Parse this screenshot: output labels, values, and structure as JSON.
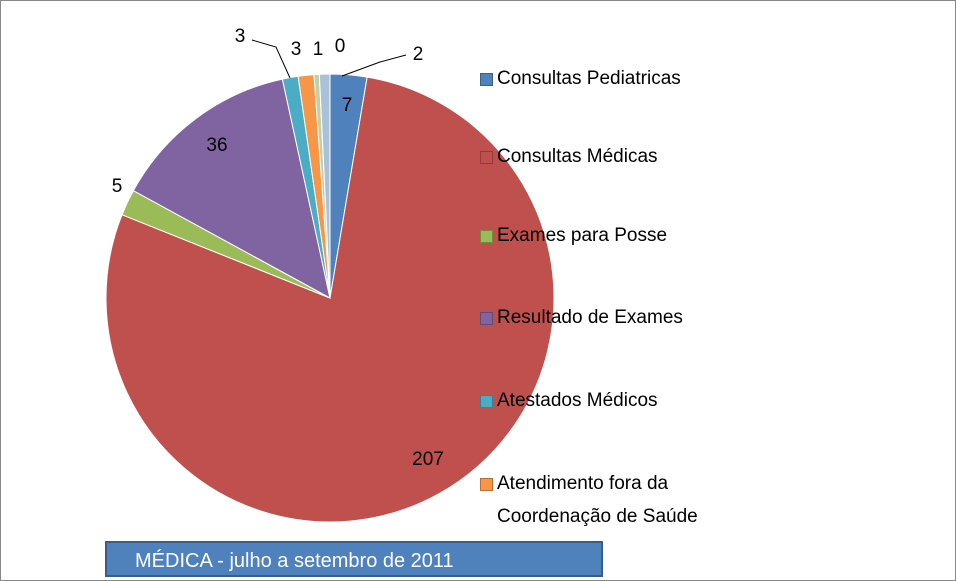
{
  "chart_data": {
    "type": "pie",
    "title": "MÉDICA - julho a setembro de 2011",
    "categories": [
      "Consultas Pediatricas",
      "Consultas Médicas",
      "Exames para Posse",
      "Resultado de Exames",
      "Atestados Médicos",
      "Atendimento fora da Coordenação de Saúde",
      null,
      null,
      null
    ],
    "values": [
      7,
      207,
      5,
      36,
      3,
      3,
      1,
      0,
      2
    ],
    "colors": [
      "#4f81bd",
      "#c0504d",
      "#9bbb59",
      "#8064a2",
      "#4bacc6",
      "#f79646",
      "#c3cfa6",
      "#2c4d75",
      "#a9c1d9"
    ],
    "legend": "right"
  }
}
